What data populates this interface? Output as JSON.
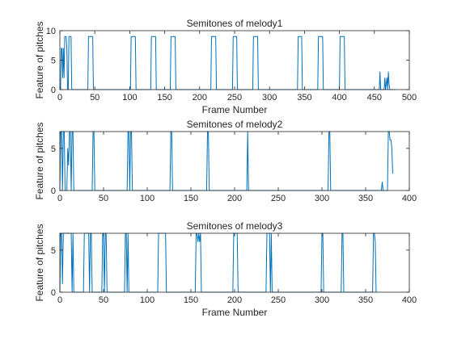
{
  "chart_data": [
    {
      "type": "line",
      "title": "Semitones of melody1",
      "xlabel": "Frame Number",
      "ylabel": "Feature of pitches",
      "xlim": [
        0,
        500
      ],
      "ylim": [
        0,
        10
      ],
      "xticks": [
        0,
        50,
        100,
        150,
        200,
        250,
        300,
        350,
        400,
        450,
        500
      ],
      "yticks": [
        0,
        5,
        10
      ],
      "color": "#0072BD",
      "series": [
        {
          "points": [
            [
              0,
              0
            ],
            [
              1,
              0
            ],
            [
              2,
              7
            ],
            [
              3,
              7
            ],
            [
              4,
              2
            ],
            [
              5,
              7
            ],
            [
              6,
              2
            ],
            [
              7,
              9
            ],
            [
              8,
              9
            ],
            [
              9,
              9
            ],
            [
              10,
              7
            ],
            [
              11,
              0
            ],
            [
              12,
              0
            ],
            [
              13,
              9
            ],
            [
              14,
              9
            ],
            [
              15,
              9
            ],
            [
              16,
              9
            ],
            [
              17,
              0
            ],
            [
              40,
              0
            ],
            [
              41,
              9
            ],
            [
              42,
              9
            ],
            [
              47,
              9
            ],
            [
              48,
              0
            ],
            [
              101,
              0
            ],
            [
              102,
              9
            ],
            [
              103,
              9
            ],
            [
              108,
              9
            ],
            [
              109,
              0
            ],
            [
              130,
              0
            ],
            [
              131,
              9
            ],
            [
              132,
              9
            ],
            [
              137,
              9
            ],
            [
              138,
              0
            ],
            [
              158,
              0
            ],
            [
              159,
              9
            ],
            [
              160,
              9
            ],
            [
              165,
              9
            ],
            [
              166,
              0
            ],
            [
              216,
              0
            ],
            [
              217,
              9
            ],
            [
              218,
              9
            ],
            [
              223,
              9
            ],
            [
              224,
              0
            ],
            [
              247,
              0
            ],
            [
              248,
              9
            ],
            [
              249,
              9
            ],
            [
              253,
              9
            ],
            [
              254,
              0
            ],
            [
              276,
              0
            ],
            [
              277,
              9
            ],
            [
              278,
              9
            ],
            [
              283,
              9
            ],
            [
              284,
              0
            ],
            [
              340,
              0
            ],
            [
              341,
              9
            ],
            [
              342,
              9
            ],
            [
              346,
              9
            ],
            [
              347,
              0
            ],
            [
              369,
              0
            ],
            [
              370,
              9
            ],
            [
              371,
              9
            ],
            [
              376,
              9
            ],
            [
              377,
              0
            ],
            [
              400,
              0
            ],
            [
              401,
              9
            ],
            [
              402,
              9
            ],
            [
              407,
              9
            ],
            [
              408,
              0
            ],
            [
              457,
              0
            ],
            [
              458,
              3
            ],
            [
              459,
              0
            ],
            [
              464,
              0
            ],
            [
              465,
              2
            ],
            [
              466,
              0
            ],
            [
              467,
              1
            ],
            [
              468,
              2
            ],
            [
              469,
              0
            ],
            [
              470,
              3
            ],
            [
              471,
              1
            ],
            [
              472,
              0
            ],
            [
              480,
              0
            ]
          ]
        }
      ]
    },
    {
      "type": "line",
      "title": "Semitones of melody2",
      "xlabel": "",
      "ylabel": "Feature of pitches",
      "xlim": [
        0,
        400
      ],
      "ylim": [
        0,
        7
      ],
      "xticks": [
        0,
        50,
        100,
        150,
        200,
        250,
        300,
        350,
        400
      ],
      "yticks": [
        0,
        5
      ],
      "color": "#0072BD",
      "series": [
        {
          "points": [
            [
              0,
              0
            ],
            [
              1,
              7
            ],
            [
              2,
              7
            ],
            [
              3,
              0
            ],
            [
              4,
              7
            ],
            [
              5,
              7
            ],
            [
              6,
              0
            ],
            [
              8,
              0
            ],
            [
              9,
              5
            ],
            [
              10,
              3
            ],
            [
              11,
              7
            ],
            [
              12,
              7
            ],
            [
              13,
              0
            ],
            [
              14,
              7
            ],
            [
              15,
              7
            ],
            [
              16,
              0
            ],
            [
              37,
              0
            ],
            [
              38,
              7
            ],
            [
              39,
              7
            ],
            [
              40,
              0
            ],
            [
              77,
              0
            ],
            [
              78,
              7
            ],
            [
              79,
              7
            ],
            [
              80,
              0
            ],
            [
              81,
              7
            ],
            [
              82,
              7
            ],
            [
              83,
              0
            ],
            [
              126,
              0
            ],
            [
              127,
              7
            ],
            [
              128,
              7
            ],
            [
              129,
              0
            ],
            [
              168,
              0
            ],
            [
              169,
              7
            ],
            [
              170,
              7
            ],
            [
              171,
              0
            ],
            [
              214,
              0
            ],
            [
              215,
              7
            ],
            [
              216,
              0
            ],
            [
              307,
              0
            ],
            [
              308,
              7
            ],
            [
              309,
              7
            ],
            [
              310,
              0
            ],
            [
              368,
              0
            ],
            [
              369,
              1
            ],
            [
              370,
              0
            ],
            [
              375,
              0
            ],
            [
              376,
              7
            ],
            [
              377,
              7
            ],
            [
              378,
              6
            ],
            [
              379,
              6
            ],
            [
              380,
              5
            ],
            [
              381,
              2
            ]
          ]
        }
      ]
    },
    {
      "type": "line",
      "title": "Semitones of melody3",
      "xlabel": "Frame Number",
      "ylabel": "Feature of pitches",
      "xlim": [
        0,
        400
      ],
      "ylim": [
        0,
        7
      ],
      "xticks": [
        0,
        50,
        100,
        150,
        200,
        250,
        300,
        350,
        400
      ],
      "yticks": [
        0,
        5
      ],
      "color": "#0072BD",
      "series": [
        {
          "points": [
            [
              0,
              0
            ],
            [
              1,
              7
            ],
            [
              2,
              7
            ],
            [
              3,
              1
            ],
            [
              4,
              7
            ],
            [
              5,
              7
            ],
            [
              13,
              7
            ],
            [
              14,
              0
            ],
            [
              15,
              7
            ],
            [
              16,
              0
            ],
            [
              27,
              0
            ],
            [
              28,
              7
            ],
            [
              29,
              7
            ],
            [
              33,
              7
            ],
            [
              34,
              0
            ],
            [
              35,
              7
            ],
            [
              36,
              7
            ],
            [
              37,
              0
            ],
            [
              48,
              0
            ],
            [
              49,
              7
            ],
            [
              50,
              7
            ],
            [
              51,
              0
            ],
            [
              52,
              7
            ],
            [
              53,
              7
            ],
            [
              54,
              0
            ],
            [
              74,
              0
            ],
            [
              75,
              7
            ],
            [
              76,
              7
            ],
            [
              77,
              0
            ],
            [
              78,
              7
            ],
            [
              79,
              0
            ],
            [
              112,
              0
            ],
            [
              113,
              7
            ],
            [
              114,
              7
            ],
            [
              121,
              7
            ],
            [
              122,
              0
            ],
            [
              155,
              0
            ],
            [
              156,
              7
            ],
            [
              157,
              7
            ],
            [
              158,
              6
            ],
            [
              159,
              7
            ],
            [
              160,
              6
            ],
            [
              161,
              7
            ],
            [
              162,
              0
            ],
            [
              198,
              0
            ],
            [
              199,
              7
            ],
            [
              200,
              7
            ],
            [
              203,
              7
            ],
            [
              204,
              0
            ],
            [
              236,
              0
            ],
            [
              237,
              7
            ],
            [
              238,
              7
            ],
            [
              240,
              7
            ],
            [
              241,
              0
            ],
            [
              242,
              7
            ],
            [
              243,
              0
            ],
            [
              299,
              0
            ],
            [
              300,
              7
            ],
            [
              301,
              7
            ],
            [
              302,
              0
            ],
            [
              322,
              0
            ],
            [
              323,
              7
            ],
            [
              324,
              7
            ],
            [
              325,
              0
            ],
            [
              358,
              0
            ],
            [
              359,
              7
            ],
            [
              360,
              7
            ],
            [
              361,
              6
            ],
            [
              362,
              0
            ]
          ]
        }
      ]
    }
  ]
}
